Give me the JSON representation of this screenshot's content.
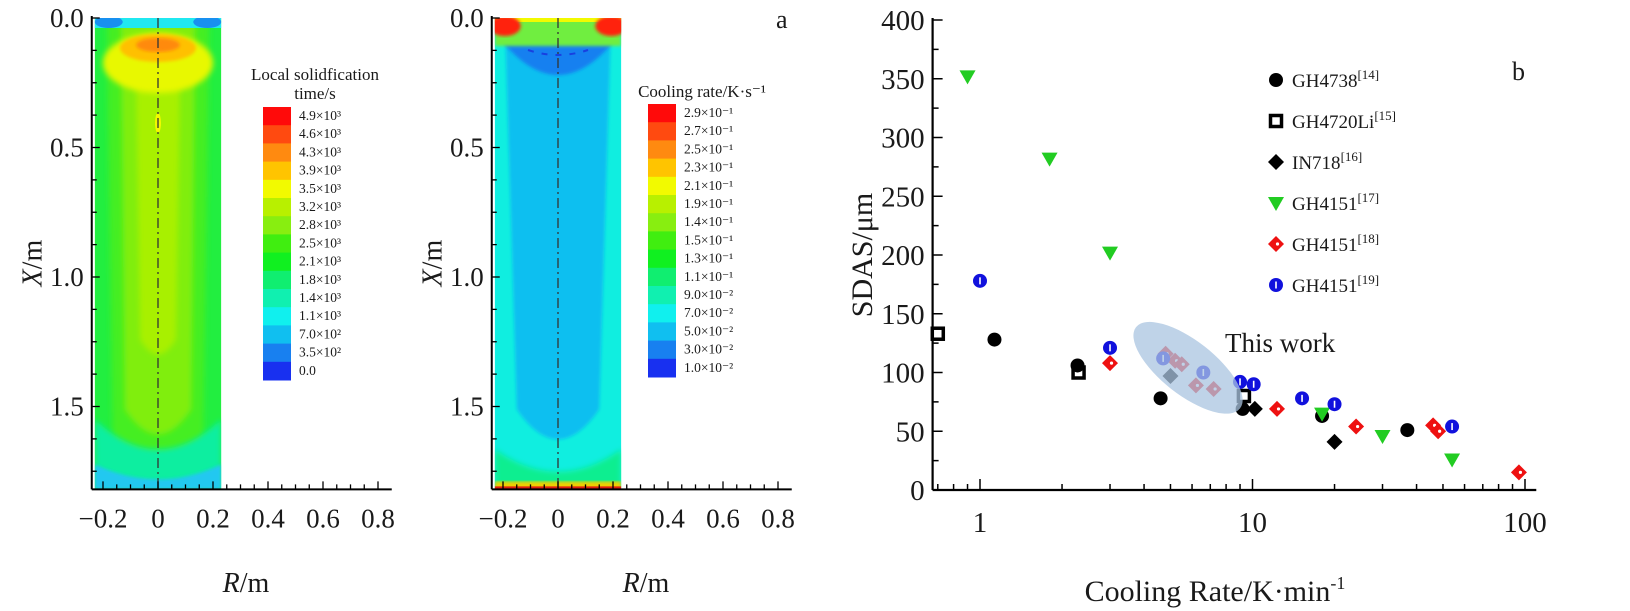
{
  "panel_labels": {
    "a": "a",
    "b": "b"
  },
  "chart_data": [
    {
      "type": "heatmap",
      "panel": "a-left",
      "xlabel": "R/m",
      "ylabel": "X/m",
      "xticks": [
        "−0.2",
        "0",
        "0.2",
        "0.4",
        "0.6",
        "0.8"
      ],
      "xtick_values": [
        -0.2,
        0,
        0.2,
        0.4,
        0.6,
        0.8
      ],
      "yticks": [
        "0.0",
        "0.5",
        "1.0",
        "1.5"
      ],
      "ytick_values": [
        0,
        0.5,
        1.0,
        1.5
      ],
      "xlim": [
        -0.23,
        0.85
      ],
      "ylim": [
        0,
        1.82
      ],
      "domain_r": [
        -0.23,
        0.23
      ],
      "colorbar": {
        "title_line1": "Local solidfication",
        "title_line2": "time/s",
        "labels": [
          "4.9×10³",
          "4.6×10³",
          "4.3×10³",
          "3.9×10³",
          "3.5×10³",
          "3.2×10³",
          "2.8×10³",
          "2.5×10³",
          "2.1×10³",
          "1.8×10³",
          "1.4×10³",
          "1.1×10³",
          "7.0×10²",
          "3.5×10²",
          "0.0"
        ],
        "colors": [
          "#ff0a0a",
          "#ff4a10",
          "#ff8a10",
          "#ffc400",
          "#f2fa00",
          "#b8f000",
          "#88ee10",
          "#40ee10",
          "#10f020",
          "#10ee70",
          "#10f0b0",
          "#10f0ee",
          "#10bff0",
          "#1880f0",
          "#1830f0"
        ]
      }
    },
    {
      "type": "heatmap",
      "panel": "a-right",
      "xlabel": "R/m",
      "ylabel": "X/m",
      "xticks": [
        "−0.2",
        "0",
        "0.2",
        "0.4",
        "0.6",
        "0.8"
      ],
      "xtick_values": [
        -0.2,
        0,
        0.2,
        0.4,
        0.6,
        0.8
      ],
      "yticks": [
        "0.0",
        "0.5",
        "1.0",
        "1.5"
      ],
      "ytick_values": [
        0,
        0.5,
        1.0,
        1.5
      ],
      "xlim": [
        -0.23,
        0.85
      ],
      "ylim": [
        0,
        1.82
      ],
      "domain_r": [
        -0.23,
        0.23
      ],
      "colorbar": {
        "title_line1": "Cooling rate/K·s⁻¹",
        "labels": [
          "2.9×10⁻¹",
          "2.7×10⁻¹",
          "2.5×10⁻¹",
          "2.3×10⁻¹",
          "2.1×10⁻¹",
          "1.9×10⁻¹",
          "1.4×10⁻¹",
          "1.5×10⁻¹",
          "1.3×10⁻¹",
          "1.1×10⁻¹",
          "9.0×10⁻²",
          "7.0×10⁻²",
          "5.0×10⁻²",
          "3.0×10⁻²",
          "1.0×10⁻²"
        ],
        "colors": [
          "#ff0a0a",
          "#ff4a10",
          "#ff8a10",
          "#ffc400",
          "#f2fa00",
          "#b8f000",
          "#88ee10",
          "#40ee10",
          "#10f020",
          "#10ee70",
          "#10f0b0",
          "#10f0ee",
          "#10bff0",
          "#1880f0",
          "#1830f0"
        ]
      }
    },
    {
      "type": "scatter",
      "panel": "b",
      "xlabel": "Cooling Rate/K·min",
      "xlabel_sup": "-1",
      "ylabel": "SDAS/μm",
      "xscale": "log",
      "xlim": [
        0.67,
        110
      ],
      "ylim": [
        0,
        400
      ],
      "xticks": [
        "1",
        "10",
        "100"
      ],
      "xtick_values": [
        1,
        10,
        100
      ],
      "yticks": [
        "0",
        "50",
        "100",
        "150",
        "200",
        "250",
        "300",
        "350",
        "400"
      ],
      "ytick_values": [
        0,
        50,
        100,
        150,
        200,
        250,
        300,
        350,
        400
      ],
      "grid": false,
      "legend_placement": "top-right",
      "annotation": {
        "text": "This work",
        "region_center": [
          5.8,
          104
        ],
        "color": "#a9c4e0"
      },
      "series": [
        {
          "name": "GH4738",
          "ref": "[14]",
          "marker": "circle",
          "color": "#000000",
          "points": [
            [
              1.13,
              128
            ],
            [
              2.28,
              106
            ],
            [
              4.6,
              78
            ],
            [
              9.2,
              69
            ],
            [
              18,
              63
            ],
            [
              37,
              51
            ]
          ]
        },
        {
          "name": "GH4720Li",
          "ref": "[15]",
          "marker": "open-square",
          "color": "#000000",
          "points": [
            [
              0.7,
              133
            ],
            [
              2.3,
              100
            ],
            [
              9.3,
              80
            ]
          ]
        },
        {
          "name": "IN718",
          "ref": "[16]",
          "marker": "diamond",
          "color": "#000000",
          "points": [
            [
              5.0,
              97
            ],
            [
              10.2,
              69
            ],
            [
              20,
              41
            ]
          ]
        },
        {
          "name": "GH4151",
          "ref": "[17]",
          "marker": "down-triangle",
          "color": "#22cc22",
          "points": [
            [
              0.9,
              352
            ],
            [
              1.8,
              282
            ],
            [
              3.0,
              202
            ],
            [
              18,
              65
            ],
            [
              30,
              46
            ],
            [
              54,
              26
            ]
          ]
        },
        {
          "name": "GH4151",
          "ref": "[18]",
          "marker": "diamond-dot",
          "color": "#ee1111",
          "points": [
            [
              3.0,
              108
            ],
            [
              4.8,
              116
            ],
            [
              5.2,
              110
            ],
            [
              5.5,
              107
            ],
            [
              6.2,
              89
            ],
            [
              7.2,
              86
            ],
            [
              12.3,
              69
            ],
            [
              24,
              54
            ],
            [
              46,
              55
            ],
            [
              48,
              50
            ],
            [
              95,
              15
            ]
          ]
        },
        {
          "name": "GH4151",
          "ref": "[19]",
          "marker": "circle-dot",
          "color": "#1111dd",
          "points": [
            [
              1.0,
              178
            ],
            [
              3.0,
              121
            ],
            [
              4.7,
              112
            ],
            [
              6.6,
              100
            ],
            [
              9.0,
              92
            ],
            [
              10.1,
              90
            ],
            [
              15.2,
              78
            ],
            [
              20,
              73
            ],
            [
              54,
              54
            ]
          ]
        }
      ]
    }
  ]
}
